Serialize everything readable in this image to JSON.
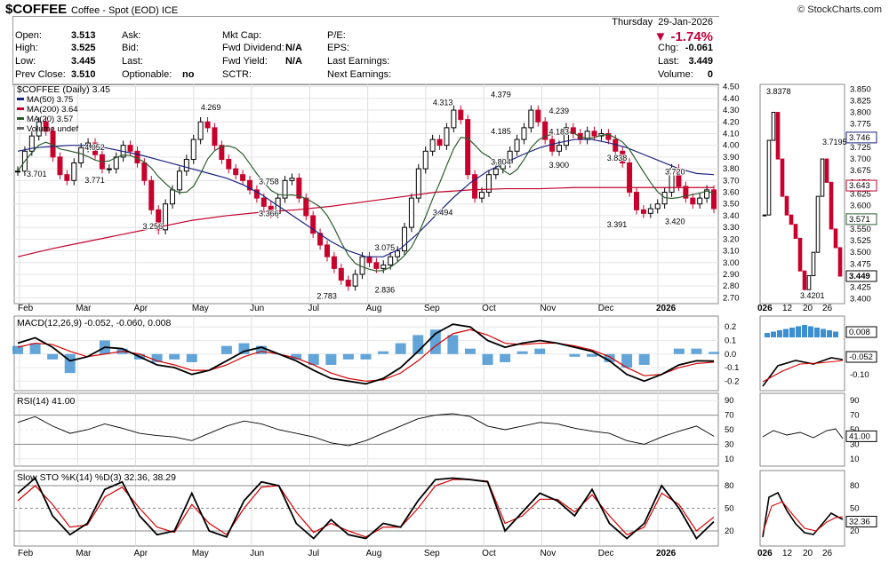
{
  "header": {
    "symbol": "$COFFEE",
    "name": "Coffee - Spot (EOD)",
    "exchange": "ICE",
    "source": "© StockCharts.com",
    "day": "Thursday",
    "date": "29-Jan-2026",
    "change_pct": "▼ -1.74%"
  },
  "quote": {
    "open_label": "Open:",
    "open": "3.513",
    "high_label": "High:",
    "high": "3.525",
    "low_label": "Low:",
    "low": "3.445",
    "prev_label": "Prev Close:",
    "prev": "3.510",
    "ask_label": "Ask:",
    "bid_label": "Bid:",
    "last_label": "Last:",
    "optionable_label": "Optionable:",
    "optionable": "no",
    "mktcap_label": "Mkt Cap:",
    "fwddiv_label": "Fwd Dividend:",
    "fwddiv": "N/A",
    "fwdyield_label": "Fwd Yield:",
    "fwdyield": "N/A",
    "sctr_label": "SCTR:",
    "pe_label": "P/E:",
    "eps_label": "EPS:",
    "lastearn_label": "Last Earnings:",
    "nextearn_label": "Next Earnings:",
    "chg_label": "Chg:",
    "chg": "-0.061",
    "last2_label": "Last:",
    "last": "3.449",
    "vol_label": "Volume:",
    "vol": "0"
  },
  "colors": {
    "up": "#000000",
    "down": "#c8002c",
    "ma50": "#1a237e",
    "ma200": "#c0002a",
    "ma20": "#2e5d2e",
    "macd": "#000000",
    "signal": "#d40000",
    "hist": "#3c8fd0",
    "rsi_area": "#4a7a4a",
    "sto_k": "#000000",
    "sto_d": "#d40000"
  },
  "chart_data": [
    {
      "type": "candlestick",
      "title": "$COFFEE (Daily) 3.45",
      "legend": [
        "MA(50) 3.75",
        "MA(200) 3.64",
        "MA(20) 3.57",
        "Volume undef"
      ],
      "x_ticks": [
        "Feb",
        "Mar",
        "Apr",
        "May",
        "Jun",
        "Jul",
        "Aug",
        "Sep",
        "Oct",
        "Nov",
        "Dec",
        "2026"
      ],
      "y_ticks": [
        "4.50",
        "4.40",
        "4.30",
        "4.20",
        "4.10",
        "4.00",
        "3.90",
        "3.80",
        "3.70",
        "3.60",
        "3.50",
        "3.40",
        "3.30",
        "3.20",
        "3.10",
        "3.00",
        "2.90",
        "2.80",
        "2.70"
      ],
      "ylim": [
        2.65,
        4.52
      ],
      "annotations": [
        {
          "label": "4.269",
          "x": "May",
          "y": 4.269
        },
        {
          "label": "4.052",
          "x": "Mar",
          "y": 4.052
        },
        {
          "label": "3.701",
          "x": "Feb",
          "y": 3.701
        },
        {
          "label": "3.771",
          "x": "Mar",
          "y": 3.771
        },
        {
          "label": "3.256",
          "x": "Apr",
          "y": 3.256
        },
        {
          "label": "3.758",
          "x": "Jun",
          "y": 3.758
        },
        {
          "label": "3.366",
          "x": "Jun",
          "y": 3.366
        },
        {
          "label": "2.783",
          "x": "Jul",
          "y": 2.783
        },
        {
          "label": "3.075",
          "x": "Aug",
          "y": 3.075
        },
        {
          "label": "2.836",
          "x": "Aug",
          "y": 2.836
        },
        {
          "label": "4.313",
          "x": "Sep",
          "y": 4.313
        },
        {
          "label": "3.494",
          "x": "Sep",
          "y": 3.494
        },
        {
          "label": "4.379",
          "x": "Oct",
          "y": 4.379
        },
        {
          "label": "4.185",
          "x": "Oct",
          "y": 4.185
        },
        {
          "label": "4.239",
          "x": "Nov",
          "y": 4.239
        },
        {
          "label": "4.183",
          "x": "Nov",
          "y": 4.183
        },
        {
          "label": "3.804",
          "x": "Oct",
          "y": 3.804
        },
        {
          "label": "3.900",
          "x": "Nov",
          "y": 3.9
        },
        {
          "label": "3.838",
          "x": "Dec",
          "y": 3.838
        },
        {
          "label": "3.391",
          "x": "Dec",
          "y": 3.391
        },
        {
          "label": "3.720",
          "x": "2026",
          "y": 3.72
        },
        {
          "label": "3.420",
          "x": "2026",
          "y": 3.42
        }
      ],
      "price_series": [
        3.78,
        3.95,
        4.08,
        4.2,
        4.12,
        3.9,
        3.75,
        3.7,
        3.85,
        3.98,
        4.02,
        3.92,
        3.8,
        3.8,
        3.9,
        4.0,
        3.95,
        3.85,
        3.7,
        3.45,
        3.28,
        3.5,
        3.62,
        3.78,
        3.88,
        4.05,
        4.2,
        4.15,
        4.0,
        3.88,
        3.8,
        3.75,
        3.7,
        3.62,
        3.55,
        3.48,
        3.42,
        3.55,
        3.7,
        3.72,
        3.55,
        3.4,
        3.25,
        3.15,
        3.05,
        2.95,
        2.85,
        2.8,
        2.9,
        3.05,
        3.0,
        2.95,
        2.98,
        3.05,
        3.1,
        3.3,
        3.55,
        3.8,
        3.95,
        4.05,
        4.0,
        4.15,
        4.3,
        4.22,
        3.75,
        3.55,
        3.6,
        3.75,
        3.8,
        3.85,
        3.95,
        4.05,
        4.15,
        4.3,
        4.2,
        4.05,
        3.95,
        4.0,
        4.15,
        4.1,
        4.05,
        4.12,
        4.08,
        4.1,
        4.05,
        3.95,
        3.85,
        3.6,
        3.45,
        3.42,
        3.46,
        3.5,
        3.6,
        3.8,
        3.65,
        3.55,
        3.5,
        3.55,
        3.62,
        3.46
      ],
      "ma50": [
        3.95,
        3.98,
        3.99,
        4.0,
        4.0,
        3.98,
        3.95,
        3.92,
        3.88,
        3.84,
        3.8,
        3.76,
        3.72,
        3.66,
        3.58,
        3.48,
        3.38,
        3.28,
        3.18,
        3.1,
        3.05,
        3.05,
        3.12,
        3.25,
        3.4,
        3.55,
        3.68,
        3.78,
        3.85,
        3.92,
        3.98,
        4.02,
        4.05,
        4.05,
        4.02,
        3.98,
        3.92,
        3.86,
        3.8,
        3.76,
        3.75
      ],
      "ma200": [
        3.05,
        3.12,
        3.18,
        3.24,
        3.3,
        3.36,
        3.4,
        3.43,
        3.45,
        3.48,
        3.52,
        3.56,
        3.6,
        3.62,
        3.63,
        3.63,
        3.64,
        3.64,
        3.64,
        3.64,
        3.64
      ],
      "ma20_last": 3.57
    },
    {
      "type": "line",
      "title": "MACD(12,26,9) -0.052, -0.060, 0.008",
      "y_ticks": [
        "0.2",
        "0.1",
        "0.0",
        "-0.1",
        "-0.2"
      ],
      "ylim": [
        -0.27,
        0.28
      ],
      "macd": [
        0.08,
        0.12,
        0.05,
        -0.05,
        -0.02,
        0.05,
        0.04,
        -0.02,
        -0.08,
        -0.1,
        -0.15,
        -0.12,
        -0.05,
        0.02,
        0.05,
        0.0,
        -0.05,
        -0.12,
        -0.18,
        -0.2,
        -0.22,
        -0.18,
        -0.1,
        0.02,
        0.15,
        0.22,
        0.2,
        0.1,
        0.05,
        0.08,
        0.1,
        0.08,
        0.05,
        0.02,
        -0.05,
        -0.15,
        -0.2,
        -0.15,
        -0.08,
        -0.05,
        -0.052
      ],
      "signal": [
        0.05,
        0.08,
        0.07,
        0.02,
        -0.02,
        0.0,
        0.02,
        0.0,
        -0.05,
        -0.08,
        -0.12,
        -0.12,
        -0.08,
        -0.02,
        0.02,
        0.0,
        -0.03,
        -0.08,
        -0.14,
        -0.18,
        -0.2,
        -0.19,
        -0.14,
        -0.05,
        0.06,
        0.15,
        0.18,
        0.14,
        0.08,
        0.07,
        0.08,
        0.08,
        0.06,
        0.03,
        -0.02,
        -0.1,
        -0.16,
        -0.15,
        -0.1,
        -0.07,
        -0.06
      ],
      "last_values": [
        "0.008",
        "-0.052"
      ]
    },
    {
      "type": "line",
      "title": "RSI(14) 41.00",
      "y_ticks": [
        "90",
        "70",
        "50",
        "30",
        "10"
      ],
      "ylim": [
        0,
        100
      ],
      "rsi": [
        60,
        68,
        55,
        45,
        50,
        58,
        52,
        45,
        42,
        40,
        35,
        45,
        55,
        62,
        58,
        50,
        45,
        40,
        32,
        28,
        35,
        45,
        55,
        65,
        70,
        72,
        68,
        55,
        50,
        55,
        60,
        58,
        52,
        48,
        45,
        35,
        30,
        40,
        48,
        55,
        41
      ],
      "last_value": "41.00"
    },
    {
      "type": "line",
      "title": "Slow STO %K(14) %D(3) 32.36, 38.29",
      "y_ticks": [
        "80",
        "50",
        "20"
      ],
      "ylim": [
        0,
        100
      ],
      "k": [
        70,
        90,
        40,
        15,
        30,
        75,
        85,
        40,
        15,
        20,
        70,
        20,
        12,
        60,
        85,
        80,
        30,
        10,
        35,
        15,
        10,
        30,
        25,
        60,
        88,
        90,
        88,
        85,
        20,
        45,
        70,
        60,
        40,
        75,
        30,
        10,
        30,
        80,
        50,
        10,
        32.36
      ],
      "d": [
        60,
        80,
        55,
        25,
        28,
        65,
        78,
        50,
        25,
        18,
        55,
        30,
        15,
        50,
        78,
        80,
        45,
        18,
        30,
        20,
        12,
        25,
        25,
        50,
        80,
        88,
        88,
        86,
        30,
        40,
        62,
        62,
        45,
        68,
        40,
        15,
        25,
        70,
        55,
        20,
        38.29
      ],
      "last_values": [
        "32.36",
        "38.29"
      ]
    }
  ],
  "x_axis_labels": [
    "Feb",
    "Mar",
    "Apr",
    "May",
    "Jun",
    "Jul",
    "Aug",
    "Sep",
    "Oct",
    "Nov",
    "Dec",
    "2026"
  ],
  "zoom_x_labels": [
    "026",
    "12",
    "20",
    "26"
  ],
  "zoom": {
    "annotations": [
      "3.8378",
      "3.7195",
      "3.4201"
    ],
    "y_ticks": [
      "3.850",
      "3.825",
      "3.800",
      "3.775",
      "3.750",
      "3.725",
      "3.700",
      "3.675",
      "3.650",
      "3.625",
      "3.600",
      "3.575",
      "3.550",
      "3.525",
      "3.500",
      "3.475",
      "3.450",
      "3.425",
      "3.400"
    ],
    "tags": [
      "3.746",
      "3.643",
      "3.571",
      "3.449"
    ],
    "macd_ticks": [
      "-0.10"
    ],
    "macd_tags": [
      "0.008",
      "-0.052"
    ],
    "rsi_ticks": [
      "90",
      "70",
      "50",
      "30",
      "10"
    ],
    "rsi_tag": "41.00",
    "sto_ticks": [
      "80",
      "50",
      "20"
    ],
    "sto_tag": "32.36"
  }
}
